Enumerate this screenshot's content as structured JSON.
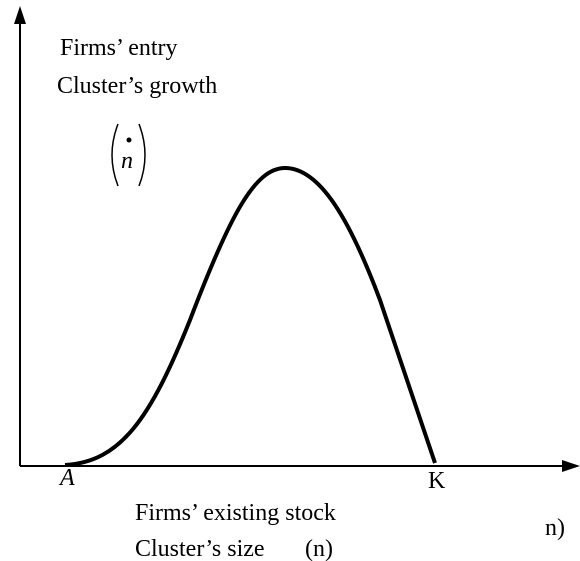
{
  "axis_y_label": {
    "line1": "Firms’ entry",
    "line2": "Cluster’s growth",
    "symbol": "n"
  },
  "axis_x_label": {
    "line1": "Firms’ existing stock",
    "line2": "Cluster’s size",
    "symbol": "(n)"
  },
  "points": {
    "origin": "A",
    "end": "K"
  },
  "axis_x_end": "n)"
}
